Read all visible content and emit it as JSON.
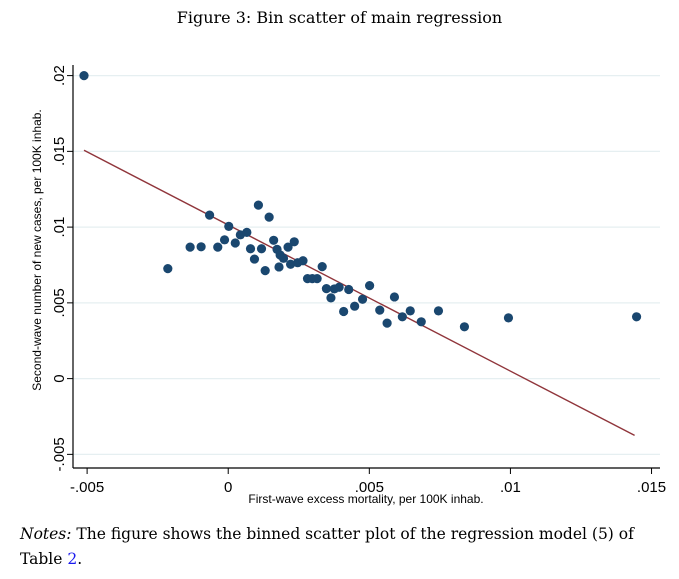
{
  "figure": {
    "caption": "Figure 3: Bin scatter of main regression",
    "notes_label": "Notes:",
    "notes_text": " The figure shows the binned scatter plot of the regression model (5) of Table ",
    "notes_ref": "2",
    "notes_end": "."
  },
  "chart_data": {
    "type": "scatter",
    "title": "",
    "xlabel": "First-wave excess mortality, per 100K inhab.",
    "ylabel": "Second-wave number of new cases, per 100K inhab.",
    "xlim": [
      -0.0055,
      0.0153
    ],
    "ylim": [
      -0.0059,
      0.0207
    ],
    "xticks": [
      -0.005,
      0,
      0.005,
      0.01,
      0.015
    ],
    "xtick_labels": [
      "-.005",
      "0",
      ".005",
      ".01",
      ".015"
    ],
    "yticks": [
      -0.005,
      0,
      0.005,
      0.01,
      0.015,
      0.02
    ],
    "ytick_labels": [
      "-.005",
      "0",
      ".005",
      ".01",
      ".015",
      ".02"
    ],
    "grid": "horizontal",
    "legend": "none",
    "colors": {
      "points": "#1a476f",
      "fit_line": "#90353b",
      "grid": "#e6eff1"
    },
    "points": [
      [
        -0.00511,
        0.02
      ],
      [
        -0.00214,
        0.00726
      ],
      [
        -0.00135,
        0.00868
      ],
      [
        -0.00096,
        0.0087
      ],
      [
        -0.00066,
        0.01079
      ],
      [
        -0.00037,
        0.00868
      ],
      [
        -0.00013,
        0.00916
      ],
      [
        2e-05,
        0.01005
      ],
      [
        0.00025,
        0.00895
      ],
      [
        0.00043,
        0.00949
      ],
      [
        0.00066,
        0.00965
      ],
      [
        0.00079,
        0.00857
      ],
      [
        0.00093,
        0.00789
      ],
      [
        0.00107,
        0.01145
      ],
      [
        0.00118,
        0.00857
      ],
      [
        0.00131,
        0.00713
      ],
      [
        0.00145,
        0.01066
      ],
      [
        0.00161,
        0.00913
      ],
      [
        0.00173,
        0.00853
      ],
      [
        0.0018,
        0.00737
      ],
      [
        0.00184,
        0.00816
      ],
      [
        0.00196,
        0.00794
      ],
      [
        0.00212,
        0.00868
      ],
      [
        0.00221,
        0.00755
      ],
      [
        0.00234,
        0.00903
      ],
      [
        0.00246,
        0.00765
      ],
      [
        0.00265,
        0.00778
      ],
      [
        0.00281,
        0.0066
      ],
      [
        0.00298,
        0.0066
      ],
      [
        0.00315,
        0.0066
      ],
      [
        0.00333,
        0.00739
      ],
      [
        0.00348,
        0.00594
      ],
      [
        0.00364,
        0.00533
      ],
      [
        0.00376,
        0.00592
      ],
      [
        0.00393,
        0.00603
      ],
      [
        0.00409,
        0.00443
      ],
      [
        0.00427,
        0.00588
      ],
      [
        0.00448,
        0.00478
      ],
      [
        0.00476,
        0.00524
      ],
      [
        0.00501,
        0.00614
      ],
      [
        0.00537,
        0.00452
      ],
      [
        0.00563,
        0.00366
      ],
      [
        0.00589,
        0.00539
      ],
      [
        0.00617,
        0.00408
      ],
      [
        0.00645,
        0.00447
      ],
      [
        0.00684,
        0.00375
      ],
      [
        0.00745,
        0.00447
      ],
      [
        0.00837,
        0.00342
      ],
      [
        0.00993,
        0.00401
      ],
      [
        0.01447,
        0.00408
      ]
    ],
    "fit_line": {
      "x": [
        -0.00511,
        0.0144
      ],
      "y": [
        0.01507,
        -0.00375
      ]
    }
  }
}
